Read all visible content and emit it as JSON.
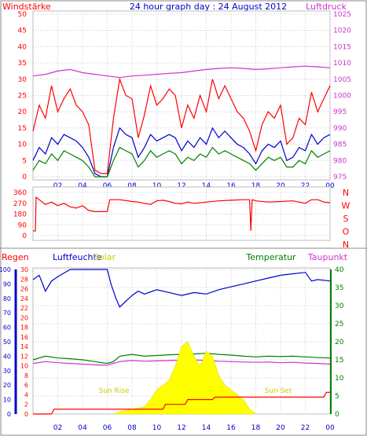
{
  "chart_data": [
    {
      "type": "line",
      "title": "24 hour graph day : 24 August 2012",
      "left_label": "Windstärke",
      "right_label": "Luftdruck",
      "x_ticks": [
        "02",
        "04",
        "06",
        "08",
        "10",
        "12",
        "14",
        "16",
        "18",
        "20",
        "22",
        "00"
      ],
      "x_range_hours": [
        0,
        24
      ],
      "y_left_ticks": [
        "0",
        "5",
        "10",
        "15",
        "20",
        "25",
        "30",
        "35",
        "40",
        "45",
        "50"
      ],
      "y_left_range": [
        0,
        50
      ],
      "y_right_ticks": [
        "975",
        "980",
        "985",
        "990",
        "995",
        "1000",
        "1005",
        "1010",
        "1015",
        "1020",
        "1025"
      ],
      "y_right_range": [
        975,
        1025
      ],
      "grid": true,
      "series": [
        {
          "color": "#ff0000",
          "axis": "left",
          "x": [
            0,
            0.5,
            1,
            1.5,
            2,
            2.5,
            3,
            3.5,
            4,
            4.5,
            5,
            5.5,
            6,
            6.5,
            7,
            7.5,
            8,
            8.5,
            9,
            9.5,
            10,
            10.5,
            11,
            11.5,
            12,
            12.5,
            13,
            13.5,
            14,
            14.5,
            15,
            15.5,
            16,
            16.5,
            17,
            17.5,
            18,
            18.5,
            19,
            19.5,
            20,
            20.5,
            21,
            21.5,
            22,
            22.5,
            23,
            23.5,
            24
          ],
          "values": [
            14,
            22,
            18,
            28,
            20,
            24,
            27,
            22,
            20,
            16,
            2,
            1,
            1,
            18,
            30,
            25,
            24,
            12,
            19,
            28,
            22,
            24,
            27,
            25,
            15,
            22,
            18,
            25,
            20,
            30,
            24,
            28,
            24,
            20,
            18,
            14,
            8,
            16,
            20,
            18,
            22,
            10,
            12,
            18,
            16,
            26,
            20,
            24,
            28
          ]
        },
        {
          "color": "#0000cc",
          "axis": "left",
          "x": [
            0,
            0.5,
            1,
            1.5,
            2,
            2.5,
            3,
            3.5,
            4,
            4.5,
            5,
            5.5,
            6,
            6.5,
            7,
            7.5,
            8,
            8.5,
            9,
            9.5,
            10,
            10.5,
            11,
            11.5,
            12,
            12.5,
            13,
            13.5,
            14,
            14.5,
            15,
            15.5,
            16,
            16.5,
            17,
            17.5,
            18,
            18.5,
            19,
            19.5,
            20,
            20.5,
            21,
            21.5,
            22,
            22.5,
            23,
            23.5,
            24
          ],
          "values": [
            5,
            9,
            7,
            12,
            10,
            13,
            12,
            11,
            9,
            6,
            1,
            0,
            0,
            9,
            15,
            13,
            12,
            6,
            9,
            13,
            11,
            12,
            13,
            12,
            8,
            11,
            9,
            12,
            10,
            15,
            12,
            14,
            12,
            10,
            9,
            7,
            4,
            8,
            10,
            9,
            11,
            5,
            6,
            9,
            8,
            13,
            10,
            12,
            13
          ]
        },
        {
          "color": "#008000",
          "axis": "left",
          "x": [
            0,
            0.5,
            1,
            1.5,
            2,
            2.5,
            3,
            3.5,
            4,
            4.5,
            5,
            5.5,
            6,
            6.5,
            7,
            7.5,
            8,
            8.5,
            9,
            9.5,
            10,
            10.5,
            11,
            11.5,
            12,
            12.5,
            13,
            13.5,
            14,
            14.5,
            15,
            15.5,
            16,
            16.5,
            17,
            17.5,
            18,
            18.5,
            19,
            19.5,
            20,
            20.5,
            21,
            21.5,
            22,
            22.5,
            23,
            23.5,
            24
          ],
          "values": [
            2,
            5,
            4,
            7,
            5,
            8,
            7,
            6,
            5,
            3,
            0,
            0,
            0,
            5,
            9,
            8,
            7,
            3,
            5,
            8,
            6,
            7,
            8,
            7,
            4,
            6,
            5,
            7,
            6,
            9,
            7,
            8,
            7,
            6,
            5,
            4,
            2,
            4,
            6,
            5,
            6,
            3,
            3,
            5,
            4,
            8,
            6,
            7,
            8
          ]
        },
        {
          "color": "#cc33cc",
          "axis": "right",
          "x": [
            0,
            1,
            2,
            3,
            4,
            5,
            6,
            7,
            8,
            9,
            10,
            11,
            12,
            13,
            14,
            15,
            16,
            17,
            18,
            19,
            20,
            21,
            22,
            23,
            24
          ],
          "values": [
            1006,
            1006.5,
            1007.5,
            1008,
            1007,
            1006.5,
            1006,
            1005.5,
            1006,
            1006.2,
            1006.5,
            1006.8,
            1007,
            1007.5,
            1008,
            1008.3,
            1008.5,
            1008.3,
            1008,
            1008.2,
            1008.5,
            1008.8,
            1009,
            1008.8,
            1008.5
          ]
        }
      ]
    },
    {
      "type": "line",
      "x_ticks": [
        "02",
        "04",
        "06",
        "08",
        "10",
        "12",
        "14",
        "16",
        "18",
        "20",
        "22",
        "00"
      ],
      "x_range_hours": [
        0,
        24
      ],
      "y_left_ticks": [
        "0",
        "90",
        "180",
        "270",
        "360"
      ],
      "y_left_range": [
        0,
        360
      ],
      "y_right_ticks": [
        "N",
        "W",
        "S",
        "O",
        "N"
      ],
      "grid": true,
      "series": [
        {
          "color": "#ff0000",
          "x": [
            0,
            0.2,
            0.25,
            0.5,
            1,
            1.5,
            2,
            2.5,
            3,
            3.5,
            4,
            4.5,
            5,
            5.5,
            6,
            6.2,
            7,
            8,
            8.5,
            9,
            9.5,
            10,
            10.5,
            11,
            11.5,
            12,
            12.5,
            13,
            14,
            15,
            16,
            17,
            17.5,
            17.6,
            17.7,
            18,
            19,
            20,
            21,
            21.5,
            22,
            22.5,
            23,
            23.5,
            24
          ],
          "values": [
            40,
            40,
            320,
            300,
            260,
            280,
            250,
            270,
            240,
            230,
            250,
            210,
            200,
            200,
            200,
            300,
            300,
            285,
            280,
            270,
            260,
            290,
            295,
            285,
            270,
            265,
            280,
            270,
            280,
            290,
            295,
            300,
            300,
            40,
            300,
            290,
            280,
            285,
            290,
            280,
            270,
            300,
            300,
            280,
            275
          ]
        }
      ]
    },
    {
      "type": "line",
      "labels": [
        "Regen",
        "Luftfeuchte",
        "Solar",
        "Temperatur",
        "Taupunkt"
      ],
      "annotations": [
        "Sun Rise",
        "Sun Set"
      ],
      "x_ticks": [
        "02",
        "04",
        "06",
        "08",
        "10",
        "12",
        "14",
        "16",
        "18",
        "20",
        "22",
        "00"
      ],
      "x_range_hours": [
        0,
        24
      ],
      "y_humidity_ticks": [
        "0",
        "10",
        "20",
        "30",
        "40",
        "50",
        "60",
        "70",
        "80",
        "90",
        "100"
      ],
      "y_humidity_range": [
        0,
        100
      ],
      "y_rain_ticks": [
        "0",
        "2",
        "4",
        "6",
        "8",
        "10",
        "12",
        "14",
        "16",
        "18",
        "20",
        "22",
        "24",
        "26",
        "28",
        "30"
      ],
      "y_rain_range": [
        0,
        30
      ],
      "y_temp_ticks": [
        "0",
        "5",
        "10",
        "15",
        "20",
        "25",
        "30",
        "35",
        "40"
      ],
      "y_temp_range": [
        0,
        40
      ],
      "grid": true,
      "series": [
        {
          "color": "#0000cc",
          "axis": "humidity",
          "x": [
            0,
            0.5,
            1,
            1.5,
            2,
            3,
            4,
            5,
            6,
            6.3,
            6.7,
            7,
            7.5,
            8,
            8.5,
            9,
            10,
            11,
            12,
            13,
            14,
            15,
            16,
            17,
            18,
            19,
            20,
            21,
            22,
            22.5,
            23,
            24
          ],
          "values": [
            93,
            96,
            85,
            92,
            95,
            100,
            100,
            100,
            100,
            90,
            80,
            74,
            78,
            82,
            85,
            83,
            86,
            84,
            82,
            84,
            83,
            86,
            88,
            90,
            92,
            94,
            96,
            97,
            98,
            92,
            93,
            92
          ]
        },
        {
          "color": "#008000",
          "axis": "temp",
          "x": [
            0,
            1,
            2,
            3,
            4,
            5,
            6,
            6.5,
            7,
            8,
            9,
            10,
            11,
            12,
            13,
            14,
            15,
            16,
            17,
            18,
            19,
            20,
            21,
            22,
            23,
            24
          ],
          "values": [
            15,
            16,
            15.5,
            15.3,
            15,
            14.5,
            14,
            14.5,
            16,
            16.5,
            16,
            16.2,
            16.4,
            16.5,
            16.6,
            16.8,
            16.5,
            16.3,
            16,
            15.8,
            16,
            15.9,
            16,
            15.8,
            15.6,
            15.5
          ]
        },
        {
          "color": "#cc33cc",
          "axis": "temp",
          "x": [
            0,
            1,
            2,
            3,
            4,
            5,
            6,
            6.5,
            7,
            8,
            9,
            10,
            11,
            12,
            13,
            14,
            15,
            16,
            17,
            18,
            19,
            20,
            21,
            22,
            23,
            24
          ],
          "values": [
            14,
            14.5,
            14.2,
            14,
            13.8,
            13.6,
            13.5,
            14,
            14.5,
            14.8,
            14.6,
            14.7,
            14.8,
            14.9,
            15,
            14.8,
            14.6,
            14.5,
            14.4,
            14.3,
            14.4,
            14.2,
            14.3,
            14.1,
            14,
            13.8
          ]
        },
        {
          "color": "#ffff00",
          "axis": "rain",
          "type": "area",
          "x": [
            6.5,
            7,
            8,
            9,
            9.5,
            10,
            10.5,
            11,
            11.5,
            12,
            12.5,
            13,
            13.5,
            14,
            14.5,
            15,
            15.5,
            16,
            16.5,
            17,
            17.5,
            18
          ],
          "values": [
            0,
            0.5,
            1,
            1.5,
            3,
            5,
            6,
            7,
            10,
            14,
            15,
            12,
            10,
            13,
            12,
            8,
            6,
            5,
            4,
            3,
            1,
            0
          ]
        },
        {
          "color": "#ff0000",
          "axis": "rain",
          "x": [
            0,
            1.5,
            1.7,
            10.5,
            10.7,
            12.3,
            12.5,
            14.5,
            14.7,
            23.5,
            23.7,
            24
          ],
          "values": [
            0,
            0,
            1,
            1,
            2,
            2,
            3,
            3,
            3.5,
            3.5,
            4.5,
            4.5
          ]
        }
      ]
    }
  ]
}
